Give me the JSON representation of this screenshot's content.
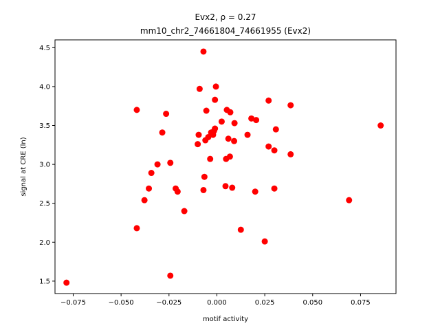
{
  "chart_data": {
    "type": "scatter",
    "title_line1": "Evx2, ρ = 0.27",
    "title_line2": "mm10_chr2_74661804_74661955 (Evx2)",
    "xlabel": "motif activity",
    "ylabel": "signal at CRE (ln)",
    "xlim": [
      -0.0845,
      0.0935
    ],
    "ylim": [
      1.34,
      4.6
    ],
    "xticks": [
      -0.075,
      -0.05,
      -0.025,
      0.0,
      0.025,
      0.05,
      0.075
    ],
    "xtick_labels": [
      "−0.075",
      "−0.050",
      "−0.025",
      "0.000",
      "0.025",
      "0.050",
      "0.075"
    ],
    "yticks": [
      1.5,
      2.0,
      2.5,
      3.0,
      3.5,
      4.0,
      4.5
    ],
    "ytick_labels": [
      "1.5",
      "2.0",
      "2.5",
      "3.0",
      "3.5",
      "4.0",
      "4.5"
    ],
    "grid": false,
    "marker_color": "#ff0000",
    "points": [
      {
        "x": -0.0785,
        "y": 1.48
      },
      {
        "x": -0.0243,
        "y": 1.57
      },
      {
        "x": -0.0418,
        "y": 2.18
      },
      {
        "x": -0.0378,
        "y": 2.54
      },
      {
        "x": -0.0355,
        "y": 2.69
      },
      {
        "x": -0.0342,
        "y": 2.89
      },
      {
        "x": -0.031,
        "y": 3.0
      },
      {
        "x": -0.0418,
        "y": 3.7
      },
      {
        "x": -0.0285,
        "y": 3.41
      },
      {
        "x": -0.0265,
        "y": 3.65
      },
      {
        "x": -0.0243,
        "y": 3.02
      },
      {
        "x": -0.0215,
        "y": 2.69
      },
      {
        "x": -0.0205,
        "y": 2.65
      },
      {
        "x": -0.017,
        "y": 2.4
      },
      {
        "x": -0.01,
        "y": 3.26
      },
      {
        "x": -0.0095,
        "y": 3.38
      },
      {
        "x": -0.009,
        "y": 3.97
      },
      {
        "x": -0.007,
        "y": 4.45
      },
      {
        "x": -0.007,
        "y": 2.67
      },
      {
        "x": -0.0065,
        "y": 2.84
      },
      {
        "x": -0.006,
        "y": 3.31
      },
      {
        "x": -0.0055,
        "y": 3.69
      },
      {
        "x": -0.0045,
        "y": 3.35
      },
      {
        "x": -0.0035,
        "y": 3.07
      },
      {
        "x": -0.003,
        "y": 3.41
      },
      {
        "x": -0.002,
        "y": 3.38
      },
      {
        "x": -0.0015,
        "y": 3.43
      },
      {
        "x": -0.001,
        "y": 3.46
      },
      {
        "x": -0.001,
        "y": 3.83
      },
      {
        "x": -0.0005,
        "y": 4.0
      },
      {
        "x": 0.0025,
        "y": 3.55
      },
      {
        "x": 0.0045,
        "y": 2.72
      },
      {
        "x": 0.0048,
        "y": 3.07
      },
      {
        "x": 0.0052,
        "y": 3.7
      },
      {
        "x": 0.006,
        "y": 3.33
      },
      {
        "x": 0.0068,
        "y": 3.1
      },
      {
        "x": 0.007,
        "y": 3.67
      },
      {
        "x": 0.008,
        "y": 2.7
      },
      {
        "x": 0.009,
        "y": 3.3
      },
      {
        "x": 0.0092,
        "y": 3.53
      },
      {
        "x": 0.0125,
        "y": 2.16
      },
      {
        "x": 0.016,
        "y": 3.38
      },
      {
        "x": 0.018,
        "y": 3.59
      },
      {
        "x": 0.02,
        "y": 2.65
      },
      {
        "x": 0.0205,
        "y": 3.57
      },
      {
        "x": 0.025,
        "y": 2.01
      },
      {
        "x": 0.027,
        "y": 3.23
      },
      {
        "x": 0.027,
        "y": 3.82
      },
      {
        "x": 0.03,
        "y": 2.69
      },
      {
        "x": 0.03,
        "y": 3.18
      },
      {
        "x": 0.0308,
        "y": 3.45
      },
      {
        "x": 0.0385,
        "y": 3.13
      },
      {
        "x": 0.0385,
        "y": 3.76
      },
      {
        "x": 0.069,
        "y": 2.54
      },
      {
        "x": 0.0855,
        "y": 3.5
      }
    ]
  }
}
